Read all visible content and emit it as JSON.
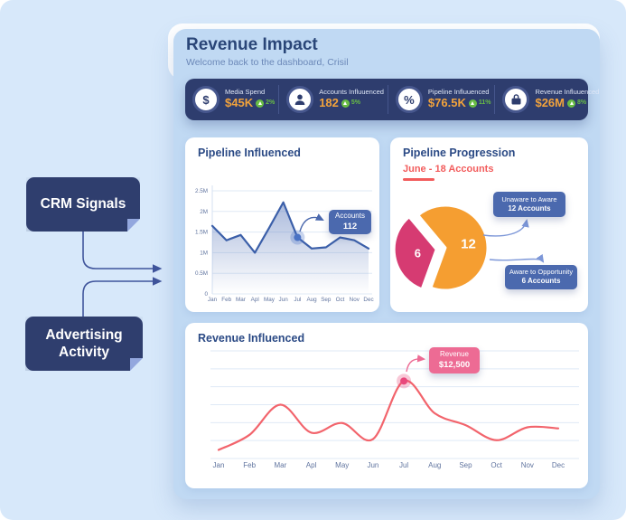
{
  "colors": {
    "canvas_bg": "#d7e8fa",
    "panel_bg": "#c0d9f3",
    "navy": "#2e3d6e",
    "title_text": "#2a4678",
    "orange_value": "#f2a33c",
    "green_delta": "#69bd45",
    "blue_line": "#3b5fa9",
    "indigo_box": "#4b69ae",
    "pie_orange": "#f59e31",
    "pie_pink": "#d63b72",
    "red_accent": "#f25c5c",
    "coral_line": "#f2646c",
    "pink_tooltip": "#ed6b94"
  },
  "flow": {
    "sources": [
      {
        "id": "crm",
        "label": "CRM Signals"
      },
      {
        "id": "advertising",
        "label": "Advertising Activity"
      }
    ]
  },
  "header": {
    "title": "Revenue Impact",
    "subtitle": "Welcome back  to the dashboard, Crisil"
  },
  "stats": [
    {
      "label": "Media Spend",
      "value": "$45K",
      "delta": "2%",
      "icon": "dollar-icon"
    },
    {
      "label": "Accounts Influuenced",
      "value": "182",
      "delta": "5%",
      "icon": "user-icon"
    },
    {
      "label": "Pipeline Influuenced",
      "value": "$76.5K",
      "delta": "11%",
      "icon": "percent-icon"
    },
    {
      "label": "Revenue Influuenced",
      "value": "$26M",
      "delta": "8%",
      "icon": "briefcase-icon"
    }
  ],
  "chart_data": [
    {
      "id": "pipeline_influenced",
      "type": "line",
      "title": "Pipeline Influenced",
      "x": [
        "Jan",
        "Feb",
        "Mar",
        "Apl",
        "May",
        "Jun",
        "Jul",
        "Aug",
        "Sep",
        "Oct",
        "Nov",
        "Dec"
      ],
      "values_millions": [
        1.65,
        1.3,
        1.43,
        1.0,
        1.6,
        2.22,
        1.37,
        1.1,
        1.13,
        1.37,
        1.3,
        1.1
      ],
      "ylim": [
        0,
        2.5
      ],
      "ytick_labels": [
        "0",
        "0.5M",
        "1M",
        "1.5M",
        "2M",
        "2.5M"
      ],
      "grid": true,
      "legend": "none",
      "line_color": "#3b5fa9",
      "area_fill": true,
      "annotation": {
        "index": 6,
        "label": "Accounts",
        "value": "112"
      }
    },
    {
      "id": "pipeline_progression",
      "type": "pie",
      "title": "Pipeline Progression",
      "subtitle": "June - 18 Accounts",
      "total_accounts": 18,
      "slices": [
        {
          "label": "Unaware to Aware",
          "value": 12,
          "color": "#f59e31",
          "exploded": false,
          "callout_line1": "Unaware to Aware",
          "callout_line2": "12 Accounts"
        },
        {
          "label": "Aware to Opportunity",
          "value": 6,
          "color": "#d63b72",
          "exploded": true,
          "callout_line1": "Aware to Opportunity",
          "callout_line2": "6 Accounts"
        }
      ]
    },
    {
      "id": "revenue_influenced",
      "type": "line",
      "title": "Revenue Influenced",
      "x": [
        "Jan",
        "Feb",
        "Mar",
        "Apl",
        "May",
        "Jun",
        "Jul",
        "Aug",
        "Sep",
        "Oct",
        "Nov",
        "Dec"
      ],
      "values": [
        8,
        22,
        50,
        24,
        33,
        18,
        72,
        42,
        31,
        17,
        29,
        28
      ],
      "ylim": [
        0,
        100
      ],
      "ytick_labels": [],
      "grid": true,
      "smooth": true,
      "legend": "none",
      "line_color": "#f2646c",
      "annotation": {
        "index": 6,
        "label": "Revenue",
        "value": "$12,500"
      }
    }
  ]
}
